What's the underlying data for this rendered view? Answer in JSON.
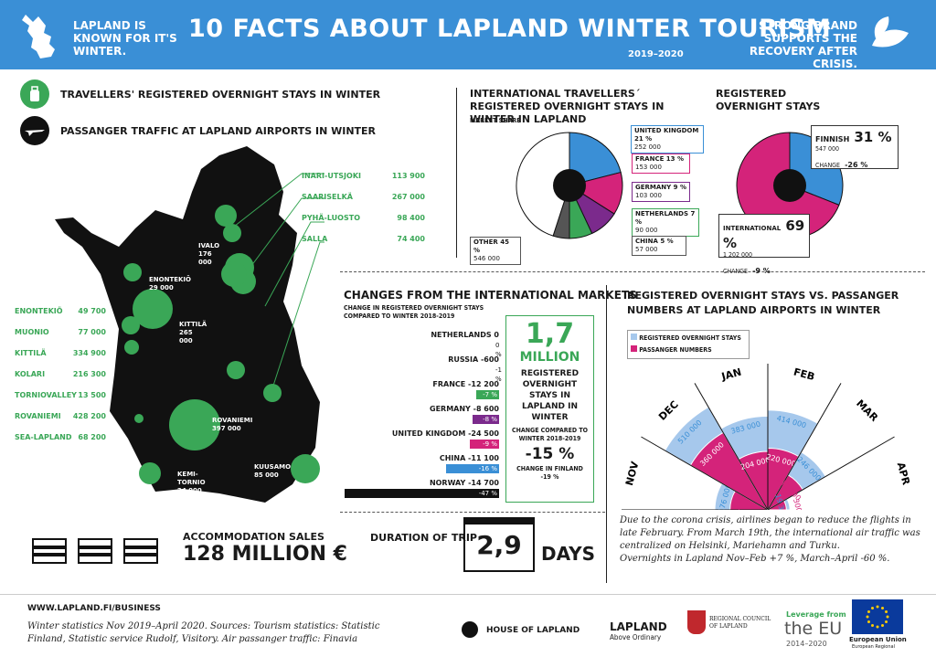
{
  "header": {
    "left": "LAPLAND IS KNOWN FOR IT'S WINTER.",
    "title": "10 FACTS ABOUT LAPLAND WINTER TOURISM",
    "years": "2019–2020",
    "right": "STRONG BRAND SUPPORTS THE RECOVERY AFTER CRISIS."
  },
  "legend": {
    "stays": "TRAVELLERS' REGISTERED OVERNIGHT STAYS IN WINTER",
    "traffic": "PASSANGER TRAFFIC AT LAPLAND AIRPORTS IN WINTER"
  },
  "map": {
    "right_places": [
      {
        "name": "INARI-UTSJOKI",
        "value": "113 900"
      },
      {
        "name": "SAARISELKÄ",
        "value": "267 000"
      },
      {
        "name": "PYHÄ-LUOSTO",
        "value": "98 400"
      },
      {
        "name": "SALLA",
        "value": "74 400"
      }
    ],
    "left_places": [
      {
        "name": "ENONTEKIÖ",
        "value": "49 700"
      },
      {
        "name": "MUONIO",
        "value": "77 000"
      },
      {
        "name": "KITTILÄ",
        "value": "334 900"
      },
      {
        "name": "KOLARI",
        "value": "216 300"
      },
      {
        "name": "TORNIOVALLEY",
        "value": "13 500"
      },
      {
        "name": "ROVANIEMI",
        "value": "428 200"
      },
      {
        "name": "SEA-LAPLAND",
        "value": "68 200"
      }
    ],
    "airports": [
      {
        "name": "IVALO",
        "value": "176 000"
      },
      {
        "name": "ENONTEKIÖ",
        "value": "29 000"
      },
      {
        "name": "KITTILÄ",
        "value": "265 000"
      },
      {
        "name": "ROVANIEMI",
        "value": "397 000"
      },
      {
        "name": "KUUSAMO",
        "value": "85 000"
      },
      {
        "name": "KEMI-TORNIO",
        "value": "24 000"
      }
    ]
  },
  "intl": {
    "title": "INTERNATIONAL TRAVELLERS´ REGISTERED OVERNIGHT STAYS IN WINTER IN LAPLAND",
    "subtitle": "MARKET SHARE",
    "slices": [
      {
        "label": "UNITED KINGDOM 21 %",
        "value": "252 000",
        "pct": 21,
        "color": "#3a8fd6"
      },
      {
        "label": "FRANCE 13 %",
        "value": "153 000",
        "pct": 13,
        "color": "#d4237a"
      },
      {
        "label": "GERMANY 9 %",
        "value": "103 000",
        "pct": 9,
        "color": "#7b2a8c"
      },
      {
        "label": "NETHERLANDS 7 %",
        "value": "90 000",
        "pct": 7,
        "color": "#3aa757"
      },
      {
        "label": "CHINA 5 %",
        "value": "57 000",
        "pct": 5,
        "color": "#555555"
      },
      {
        "label": "OTHER 45 %",
        "value": "546 000",
        "pct": 45,
        "color": "#ffffff"
      }
    ]
  },
  "reg": {
    "title": "REGISTERED OVERNIGHT STAYS",
    "finnish_label": "FINNISH",
    "finnish_pct": "31 %",
    "finnish_val": "547 000",
    "finnish_change": "CHANGE",
    "finnish_change_val": "-26 %",
    "intl_label": "INTERNATIONAL",
    "intl_pct": "69 %",
    "intl_val": "1 202 000",
    "intl_change": "CHANGE",
    "intl_change_val": "-9 %"
  },
  "changes": {
    "title": "CHANGES FROM THE INTERNATIONAL MARKETS",
    "subtitle": "CHANGE IN REGISTERED OVERNIGHT STAYS COMPARED TO WINTER 2018-2019",
    "rows": [
      {
        "label": "NETHERLANDS 0",
        "pct": "0 %",
        "p": 0,
        "color": "#888"
      },
      {
        "label": "RUSSIA -600",
        "pct": "-1 %",
        "p": 1,
        "color": "#888"
      },
      {
        "label": "FRANCE -12 200",
        "pct": "-7 %",
        "p": 7,
        "color": "#3aa757"
      },
      {
        "label": "GERMANY -8 600",
        "pct": "-8 %",
        "p": 8,
        "color": "#7b2a8c"
      },
      {
        "label": "UNITED KINGDOM -24 500",
        "pct": "-9 %",
        "p": 9,
        "color": "#d4237a"
      },
      {
        "label": "CHINA -11 100",
        "pct": "-16 %",
        "p": 16,
        "color": "#3a8fd6"
      },
      {
        "label": "NORWAY -14 700",
        "pct": "-47 %",
        "p": 47,
        "color": "#111"
      }
    ]
  },
  "million": {
    "number": "1,7",
    "unit": "MILLION",
    "text": "REGISTERED OVERNIGHT STAYS IN LAPLAND IN WINTER",
    "change_label": "CHANGE COMPARED TO WINTER 2018-2019",
    "change_value": "-15 %",
    "finland": "CHANGE IN FINLAND -19 %"
  },
  "airports_chart": {
    "title": "REGISTERED OVERNIGHT STAYS VS. PASSANGER NUMBERS AT LAPLAND AIRPORTS IN WINTER",
    "legend_stays": "REGISTERED OVERNIGHT STAYS",
    "legend_pass": "PASSANGER NUMBERS",
    "months": [
      {
        "m": "NOV",
        "stays": "176 000",
        "pass": "99 000",
        "s": 176000,
        "p": 99000
      },
      {
        "m": "DEC",
        "stays": "510 000",
        "pass": "360 000",
        "s": 510000,
        "p": 360000
      },
      {
        "m": "JAN",
        "stays": "383 000",
        "pass": "204 000",
        "s": 383000,
        "p": 204000
      },
      {
        "m": "FEB",
        "stays": "414 000",
        "pass": "220 000",
        "s": 414000,
        "p": 220000
      },
      {
        "m": "MAR",
        "stays": "246 000",
        "pass": "112 000",
        "s": 246000,
        "p": 112000
      },
      {
        "m": "APR",
        "stays": "19 300",
        "pass": "1 300",
        "s": 19300,
        "p": 1300
      }
    ]
  },
  "note1": "Due to the corona crisis, airlines began to reduce the flights in late February. From March 19th, the international air traffic was centralized on Helsinki, Mariehamn and Turku.",
  "note2": "Overnights in Lapland Nov–Feb +7 %, March–April -60 %.",
  "accommodation": {
    "label": "ACCOMMODATION SALES",
    "value": "128 MILLION €"
  },
  "trip": {
    "label": "DURATION OF TRIP",
    "value": "2,9",
    "unit": "DAYS"
  },
  "footer": {
    "url": "WWW.LAPLAND.FI/BUSINESS",
    "source": "Winter statistics Nov 2019–April 2020. Sources: Tourism statistics: Statistic Finland, Statistic service Rudolf, Visitory. Air passanger traffic: Finavia",
    "house": "HOUSE OF LAPLAND",
    "lapland": "LAPLAND",
    "above": "Above Ordinary",
    "council": "REGIONAL COUNCIL OF LAPLAND",
    "leverage": "Leverage from",
    "theeu": "the EU",
    "years": "2014–2020",
    "eu": "European Union",
    "euf": "European Regional"
  },
  "colors": {
    "blue": "#3a8fd6",
    "green": "#3aa757",
    "pink": "#d4237a",
    "light": "#a6c8ec"
  }
}
